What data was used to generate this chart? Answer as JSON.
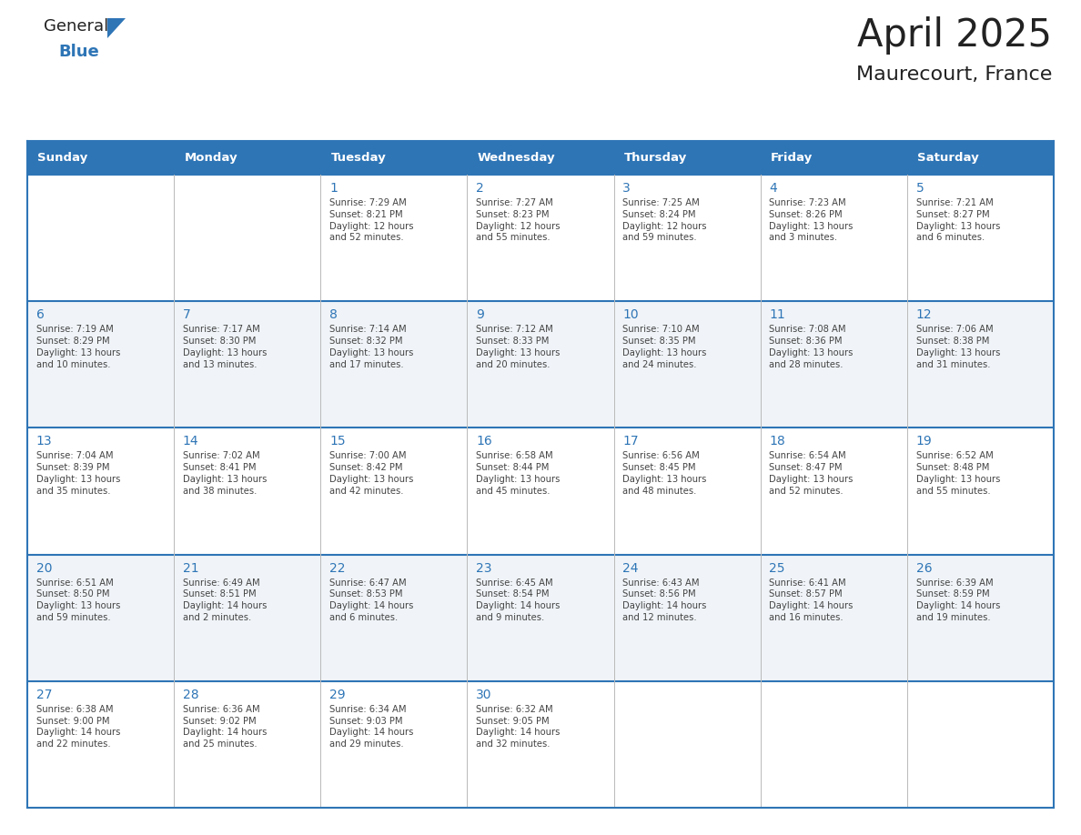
{
  "title": "April 2025",
  "subtitle": "Maurecourt, France",
  "header_bg_color": "#2E75B6",
  "header_text_color": "#FFFFFF",
  "cell_bg_even": "#FFFFFF",
  "cell_bg_odd": "#F0F4F8",
  "row_sep_color": "#2E75B6",
  "col_sep_color": "#AAAAAA",
  "day_num_color": "#2E75B6",
  "cell_text_color": "#444444",
  "title_color": "#222222",
  "logo_general_color": "#222222",
  "logo_blue_color": "#2E75B6",
  "logo_triangle_color": "#2E75B6",
  "days_of_week": [
    "Sunday",
    "Monday",
    "Tuesday",
    "Wednesday",
    "Thursday",
    "Friday",
    "Saturday"
  ],
  "calendar_data": [
    [
      "",
      "",
      "1\nSunrise: 7:29 AM\nSunset: 8:21 PM\nDaylight: 12 hours\nand 52 minutes.",
      "2\nSunrise: 7:27 AM\nSunset: 8:23 PM\nDaylight: 12 hours\nand 55 minutes.",
      "3\nSunrise: 7:25 AM\nSunset: 8:24 PM\nDaylight: 12 hours\nand 59 minutes.",
      "4\nSunrise: 7:23 AM\nSunset: 8:26 PM\nDaylight: 13 hours\nand 3 minutes.",
      "5\nSunrise: 7:21 AM\nSunset: 8:27 PM\nDaylight: 13 hours\nand 6 minutes."
    ],
    [
      "6\nSunrise: 7:19 AM\nSunset: 8:29 PM\nDaylight: 13 hours\nand 10 minutes.",
      "7\nSunrise: 7:17 AM\nSunset: 8:30 PM\nDaylight: 13 hours\nand 13 minutes.",
      "8\nSunrise: 7:14 AM\nSunset: 8:32 PM\nDaylight: 13 hours\nand 17 minutes.",
      "9\nSunrise: 7:12 AM\nSunset: 8:33 PM\nDaylight: 13 hours\nand 20 minutes.",
      "10\nSunrise: 7:10 AM\nSunset: 8:35 PM\nDaylight: 13 hours\nand 24 minutes.",
      "11\nSunrise: 7:08 AM\nSunset: 8:36 PM\nDaylight: 13 hours\nand 28 minutes.",
      "12\nSunrise: 7:06 AM\nSunset: 8:38 PM\nDaylight: 13 hours\nand 31 minutes."
    ],
    [
      "13\nSunrise: 7:04 AM\nSunset: 8:39 PM\nDaylight: 13 hours\nand 35 minutes.",
      "14\nSunrise: 7:02 AM\nSunset: 8:41 PM\nDaylight: 13 hours\nand 38 minutes.",
      "15\nSunrise: 7:00 AM\nSunset: 8:42 PM\nDaylight: 13 hours\nand 42 minutes.",
      "16\nSunrise: 6:58 AM\nSunset: 8:44 PM\nDaylight: 13 hours\nand 45 minutes.",
      "17\nSunrise: 6:56 AM\nSunset: 8:45 PM\nDaylight: 13 hours\nand 48 minutes.",
      "18\nSunrise: 6:54 AM\nSunset: 8:47 PM\nDaylight: 13 hours\nand 52 minutes.",
      "19\nSunrise: 6:52 AM\nSunset: 8:48 PM\nDaylight: 13 hours\nand 55 minutes."
    ],
    [
      "20\nSunrise: 6:51 AM\nSunset: 8:50 PM\nDaylight: 13 hours\nand 59 minutes.",
      "21\nSunrise: 6:49 AM\nSunset: 8:51 PM\nDaylight: 14 hours\nand 2 minutes.",
      "22\nSunrise: 6:47 AM\nSunset: 8:53 PM\nDaylight: 14 hours\nand 6 minutes.",
      "23\nSunrise: 6:45 AM\nSunset: 8:54 PM\nDaylight: 14 hours\nand 9 minutes.",
      "24\nSunrise: 6:43 AM\nSunset: 8:56 PM\nDaylight: 14 hours\nand 12 minutes.",
      "25\nSunrise: 6:41 AM\nSunset: 8:57 PM\nDaylight: 14 hours\nand 16 minutes.",
      "26\nSunrise: 6:39 AM\nSunset: 8:59 PM\nDaylight: 14 hours\nand 19 minutes."
    ],
    [
      "27\nSunrise: 6:38 AM\nSunset: 9:00 PM\nDaylight: 14 hours\nand 22 minutes.",
      "28\nSunrise: 6:36 AM\nSunset: 9:02 PM\nDaylight: 14 hours\nand 25 minutes.",
      "29\nSunrise: 6:34 AM\nSunset: 9:03 PM\nDaylight: 14 hours\nand 29 minutes.",
      "30\nSunrise: 6:32 AM\nSunset: 9:05 PM\nDaylight: 14 hours\nand 32 minutes.",
      "",
      "",
      ""
    ]
  ]
}
